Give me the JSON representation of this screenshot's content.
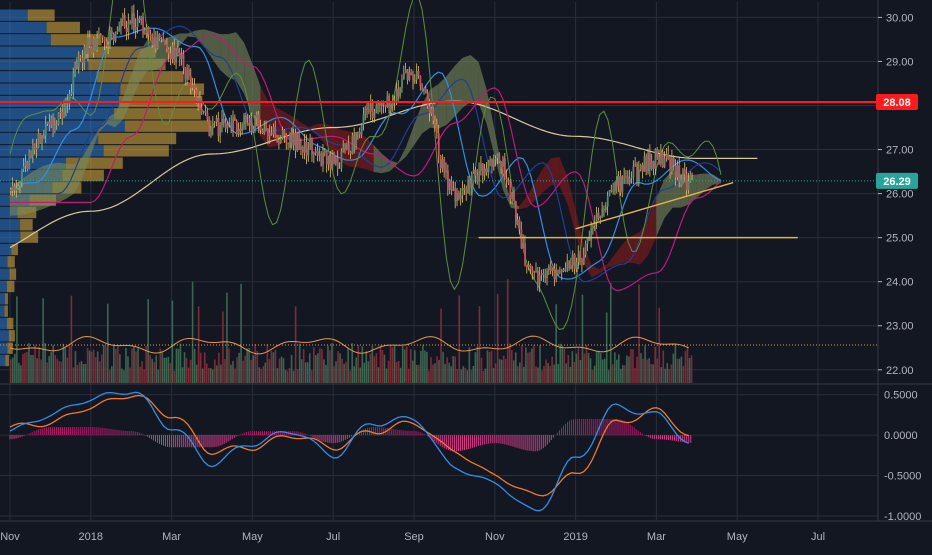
{
  "theme": {
    "background": "#131722",
    "grid": "#2a2e39",
    "axis_text": "#b2b5be",
    "candle_up": "#4f8f6b",
    "candle_down": "#d84a5a",
    "wick": "#e2c06a",
    "ma_long": "#d8c79a",
    "ma_blue": "#2f8fe8",
    "ma_navy": "#1e3f9a",
    "ma_magenta": "#c2187c",
    "rsi_green": "#5c8f3a",
    "price_line": "#ff1b1b",
    "last_price_color": "#26a69a",
    "support_line": "#e3b341",
    "trend_line": "#e3b341",
    "macd_blue": "#2f8fe8",
    "macd_signal": "#f07a2a",
    "hist_pos": "#b01a6a",
    "hist_neg": "#d23c8a"
  },
  "price_labels": {
    "resistance": "28.08",
    "last": "26.29"
  },
  "chart_data": [
    {
      "type": "candlestick",
      "ylim": [
        21.7,
        30.35
      ],
      "y_ticks": [
        "30.00",
        "29.00",
        "28.00",
        "27.00",
        "26.00",
        "25.00",
        "24.00",
        "23.00",
        "22.00"
      ],
      "x_labels": [
        "Nov",
        "2018",
        "Mar",
        "May",
        "Jul",
        "Sep",
        "Nov",
        "2019",
        "Mar",
        "May",
        "Jul"
      ],
      "resistance_level": 28.08,
      "last_price": 26.29,
      "support_level": 25.0,
      "trend_line": {
        "from": [
          "2019-01",
          25.2
        ],
        "to": [
          "2019-04",
          26.25
        ]
      },
      "series": [
        {
          "kind": "price_path",
          "points": [
            [
              "2017-10",
              26.3
            ],
            [
              "2017-11",
              26.1
            ],
            [
              "2017-12",
              27.6
            ],
            [
              "2018-01",
              29.4
            ],
            [
              "2018-02",
              29.9
            ],
            [
              "2018-03",
              29.2
            ],
            [
              "2018-04",
              27.5
            ],
            [
              "2018-05",
              27.6
            ],
            [
              "2018-06",
              27.2
            ],
            [
              "2018-07",
              26.7
            ],
            [
              "2018-08",
              27.9
            ],
            [
              "2018-09",
              28.7
            ],
            [
              "2018-10",
              26.0
            ],
            [
              "2018-11",
              26.8
            ],
            [
              "2018-12",
              24.1
            ],
            [
              "2019-01",
              24.5
            ],
            [
              "2019-02",
              26.2
            ],
            [
              "2019-03",
              26.8
            ],
            [
              "2019-04",
              26.2
            ]
          ]
        },
        {
          "name": "",
          "kind": "ma_long",
          "points": [
            [
              "2017-10",
              24.5
            ],
            [
              "2018-01",
              25.6
            ],
            [
              "2018-04",
              26.9
            ],
            [
              "2018-07",
              27.5
            ],
            [
              "2018-10",
              28.1
            ],
            [
              "2019-01",
              27.3
            ],
            [
              "2019-04",
              26.8
            ]
          ]
        }
      ]
    },
    {
      "type": "volume",
      "ma_level": 0.45
    },
    {
      "type": "line",
      "name": "MACD",
      "ylim": [
        -1.05,
        0.62
      ],
      "y_ticks": [
        "0.5000",
        "0.0000",
        "-0.5000",
        "-1.0000"
      ],
      "series": [
        {
          "name": "",
          "kind": "macd",
          "points": [
            [
              "2017-10",
              0.3
            ],
            [
              "2017-11",
              0.05
            ],
            [
              "2017-12",
              0.25
            ],
            [
              "2018-01",
              0.45
            ],
            [
              "2018-02",
              0.55
            ],
            [
              "2018-03",
              0.1
            ],
            [
              "2018-04",
              -0.35
            ],
            [
              "2018-05",
              -0.1
            ],
            [
              "2018-06",
              0.05
            ],
            [
              "2018-07",
              -0.25
            ],
            [
              "2018-08",
              0.15
            ],
            [
              "2018-09",
              0.2
            ],
            [
              "2018-10",
              -0.4
            ],
            [
              "2018-11",
              -0.6
            ],
            [
              "2018-12",
              -0.95
            ],
            [
              "2019-01",
              -0.3
            ],
            [
              "2019-02",
              0.35
            ],
            [
              "2019-03",
              0.25
            ],
            [
              "2019-04",
              -0.15
            ]
          ]
        },
        {
          "name": "",
          "kind": "signal",
          "points": [
            [
              "2017-10",
              0.25
            ],
            [
              "2017-11",
              0.1
            ],
            [
              "2017-12",
              0.15
            ],
            [
              "2018-01",
              0.35
            ],
            [
              "2018-02",
              0.5
            ],
            [
              "2018-03",
              0.25
            ],
            [
              "2018-04",
              -0.2
            ],
            [
              "2018-05",
              -0.15
            ],
            [
              "2018-06",
              0.0
            ],
            [
              "2018-07",
              -0.15
            ],
            [
              "2018-08",
              0.05
            ],
            [
              "2018-09",
              0.15
            ],
            [
              "2018-10",
              -0.2
            ],
            [
              "2018-11",
              -0.5
            ],
            [
              "2018-12",
              -0.75
            ],
            [
              "2019-01",
              -0.5
            ],
            [
              "2019-02",
              0.15
            ],
            [
              "2019-03",
              0.3
            ],
            [
              "2019-04",
              -0.05
            ]
          ]
        }
      ]
    }
  ]
}
